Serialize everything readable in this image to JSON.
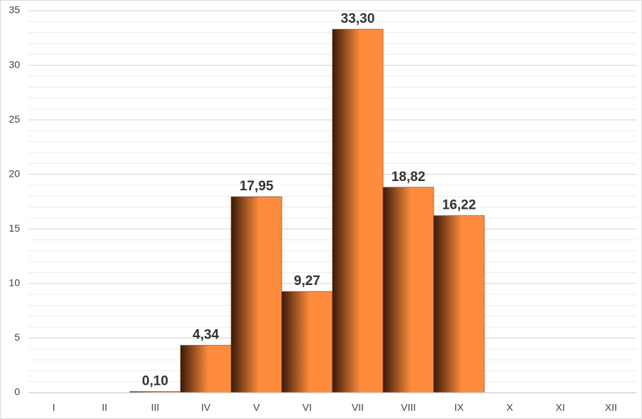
{
  "chart_data": {
    "type": "bar",
    "categories": [
      "I",
      "II",
      "III",
      "IV",
      "V",
      "VI",
      "VII",
      "VIII",
      "IX",
      "X",
      "XI",
      "XII"
    ],
    "values": [
      null,
      null,
      0.1,
      4.34,
      17.95,
      9.27,
      33.3,
      18.82,
      16.22,
      null,
      null,
      null
    ],
    "value_labels": [
      null,
      null,
      "0,10",
      "4,34",
      "17,95",
      "9,27",
      "33,30",
      "18,82",
      "16,22",
      null,
      null,
      null
    ],
    "color": "#ff8c3c",
    "ylim": [
      0,
      35
    ],
    "yticks": [
      0,
      5,
      10,
      15,
      20,
      25,
      30,
      35
    ],
    "y_minor_ticks": [
      1,
      2,
      3,
      4,
      6,
      7,
      8,
      9,
      11,
      12,
      13,
      14,
      16,
      17,
      18,
      19,
      21,
      22,
      23,
      24,
      26,
      27,
      28,
      29,
      31,
      32,
      33,
      34
    ],
    "grid": true
  }
}
